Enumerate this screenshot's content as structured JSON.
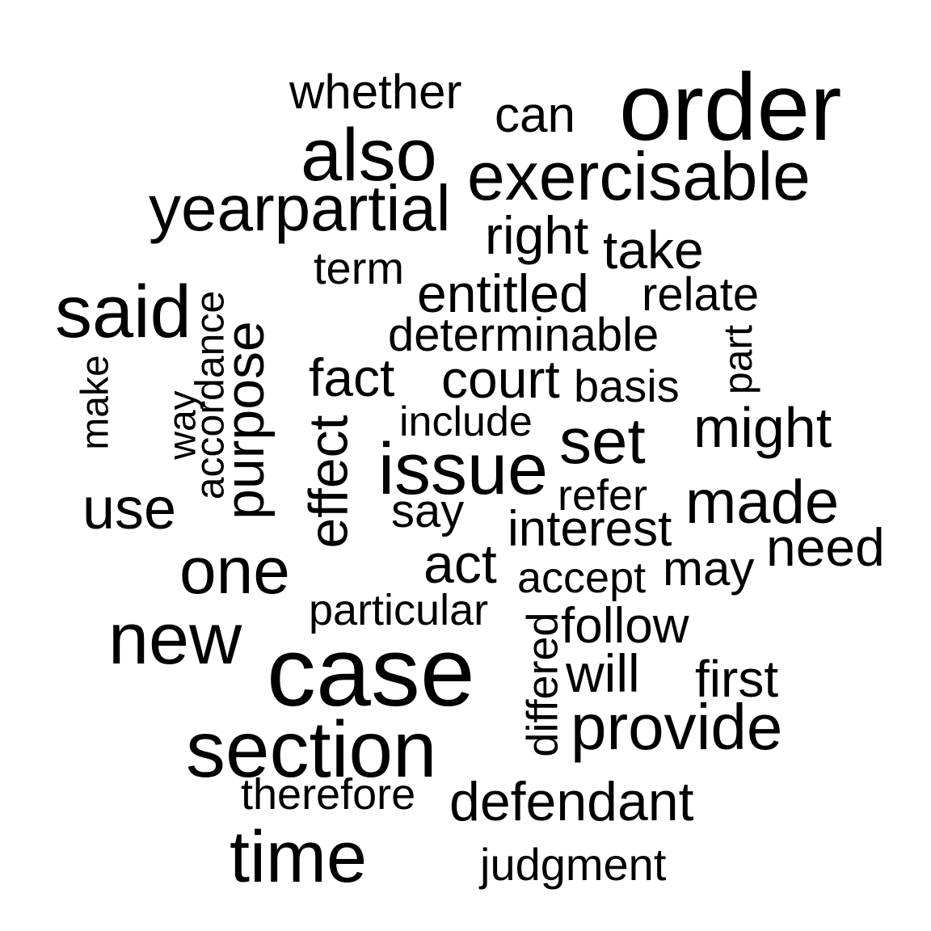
{
  "words": {
    "whether": "whether",
    "can": "can",
    "order": "order",
    "also": "also",
    "exercisable": "exercisable",
    "yearpartial": "yearpartial",
    "right": "right",
    "take": "take",
    "term": "term",
    "entitled": "entitled",
    "relate": "relate",
    "said": "said",
    "accordance": "accordance",
    "purpose": "purpose",
    "determinable": "determinable",
    "part": "part",
    "make": "make",
    "way": "way",
    "fact": "fact",
    "court": "court",
    "basis": "basis",
    "effect": "effect",
    "include": "include",
    "set": "set",
    "might": "might",
    "issue": "issue",
    "use": "use",
    "refer": "refer",
    "made": "made",
    "say": "say",
    "interest": "interest",
    "need": "need",
    "one": "one",
    "act": "act",
    "accept": "accept",
    "may": "may",
    "particular": "particular",
    "new": "new",
    "follow": "follow",
    "differed": "differed",
    "case": "case",
    "will": "will",
    "first": "first",
    "provide": "provide",
    "section": "section",
    "therefore": "therefore",
    "defendant": "defendant",
    "time": "time",
    "judgment": "judgment"
  }
}
